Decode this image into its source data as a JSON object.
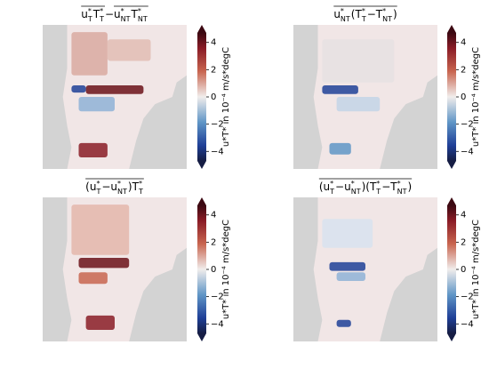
{
  "chart_data": [
    {
      "type": "heatmap",
      "title": [
        {
          "overline": true,
          "tokens": [
            {
              "b": "u",
              "sup": "*",
              "sub": "T"
            },
            {
              "b": "T",
              "sup": "*",
              "sub": "T"
            }
          ]
        },
        " − ",
        {
          "overline": true,
          "tokens": [
            {
              "b": "u",
              "sup": "*",
              "sub": "NT"
            },
            {
              "b": "T",
              "sup": "*",
              "sub": "NT"
            }
          ]
        }
      ],
      "colorbar": {
        "label": "u*T* in 10⁻⁴ m/s*degC",
        "clim": [
          -4.7,
          4.7
        ],
        "extend": "both",
        "ticks": [
          {
            "value": -4,
            "label": "−4"
          },
          {
            "value": -2,
            "label": "−2"
          },
          0,
          2,
          4
        ]
      }
    },
    {
      "type": "heatmap",
      "title": [
        {
          "overline": true,
          "tokens": [
            {
              "b": "u",
              "sup": "*",
              "sub": "NT"
            },
            "(",
            {
              "b": "T",
              "sup": "*",
              "sub": "T"
            },
            " − ",
            {
              "b": "T",
              "sup": "*",
              "sub": "NT"
            },
            ")"
          ]
        }
      ],
      "colorbar": {
        "label": "u*T* in 10⁻⁴ m/s*degC",
        "clim": [
          -4.7,
          4.7
        ],
        "extend": "both",
        "ticks": [
          {
            "value": -4,
            "label": "−4"
          },
          {
            "value": -2,
            "label": "−2"
          },
          0,
          2,
          4
        ]
      }
    },
    {
      "type": "heatmap",
      "title": [
        {
          "overline": true,
          "tokens": [
            "(",
            {
              "b": "u",
              "sup": "*",
              "sub": "T"
            },
            " − ",
            {
              "b": "u",
              "sup": "*",
              "sub": "NT"
            },
            ")",
            {
              "b": "T",
              "sup": "*",
              "sub": "T"
            }
          ]
        }
      ],
      "colorbar": {
        "label": "u*T* in 10⁻⁴ m/s*degC",
        "clim": [
          -4.7,
          4.7
        ],
        "extend": "both",
        "ticks": [
          {
            "value": -4,
            "label": "−4"
          },
          {
            "value": -2,
            "label": "−2"
          },
          0,
          2,
          4
        ]
      }
    },
    {
      "type": "heatmap",
      "title": [
        {
          "overline": true,
          "tokens": [
            "(",
            {
              "b": "u",
              "sup": "*",
              "sub": "T"
            },
            " − ",
            {
              "b": "u",
              "sup": "*",
              "sub": "NT"
            },
            ")(",
            {
              "b": "T",
              "sup": "*",
              "sub": "T"
            },
            " − ",
            {
              "b": "T",
              "sup": "*",
              "sub": "NT"
            },
            ")"
          ]
        }
      ],
      "colorbar": {
        "label": "u*T* in 10⁻⁴ m/s*degC",
        "clim": [
          -4.7,
          4.7
        ],
        "extend": "both",
        "ticks": [
          {
            "value": -4,
            "label": "−4"
          },
          {
            "value": -2,
            "label": "−2"
          },
          0,
          2,
          4
        ]
      }
    }
  ]
}
